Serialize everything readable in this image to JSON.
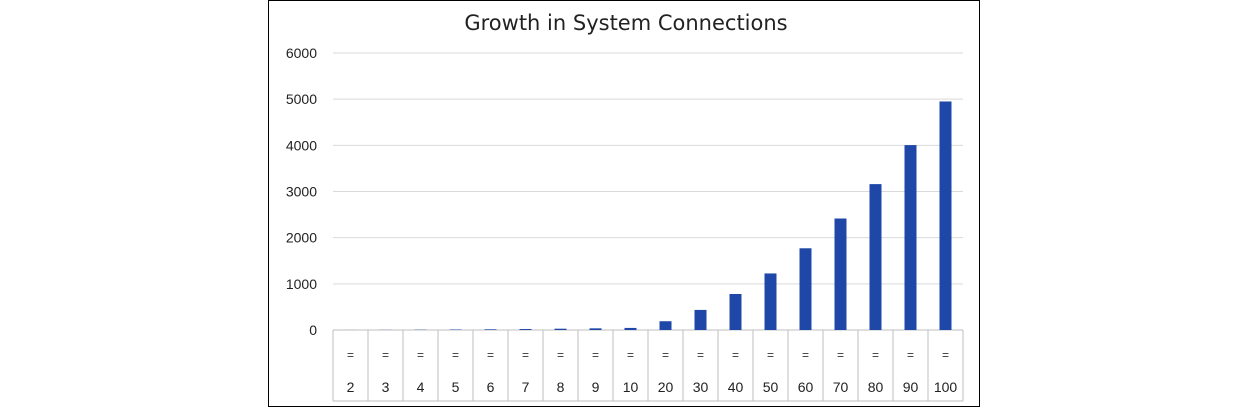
{
  "chart_data": {
    "type": "bar",
    "title": "Growth in System Connections",
    "xlabel": "",
    "ylabel": "",
    "ylim": [
      0,
      6000
    ],
    "yticks": [
      0,
      1000,
      2000,
      3000,
      4000,
      5000,
      6000
    ],
    "grid": true,
    "legend": "none",
    "bar_color": "#1f47a8",
    "category_markers": [
      "=",
      "=",
      "=",
      "=",
      "=",
      "=",
      "=",
      "=",
      "=",
      "=",
      "=",
      "=",
      "=",
      "=",
      "=",
      "=",
      "=",
      "="
    ],
    "categories": [
      "2",
      "3",
      "4",
      "5",
      "6",
      "7",
      "8",
      "9",
      "10",
      "20",
      "30",
      "40",
      "50",
      "60",
      "70",
      "80",
      "90",
      "100"
    ],
    "values": [
      1,
      3,
      6,
      10,
      15,
      21,
      28,
      36,
      45,
      190,
      435,
      780,
      1225,
      1770,
      2415,
      3160,
      4005,
      4950
    ]
  }
}
